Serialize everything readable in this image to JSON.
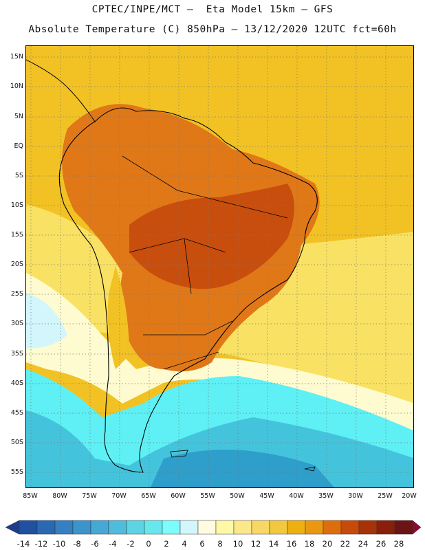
{
  "header": {
    "line1": "CPTEC/INPE/MCT –  Eta Model 15km – GFS",
    "line2": "Absolute Temperature (C) 850hPa – 13/12/2020 12UTC fct=60h"
  },
  "map": {
    "lat_labels": [
      "15N",
      "10N",
      "5N",
      "EQ",
      "5S",
      "10S",
      "15S",
      "20S",
      "25S",
      "30S",
      "35S",
      "40S",
      "45S",
      "50S",
      "55S"
    ],
    "lon_labels": [
      "85W",
      "80W",
      "75W",
      "70W",
      "65W",
      "60W",
      "55W",
      "50W",
      "45W",
      "40W",
      "35W",
      "30W",
      "25W",
      "20W"
    ],
    "grid_style": "dotted",
    "palette": {
      "ocean_warm": "#f2c224",
      "ocean_mild": "#fae66a",
      "land_hot": "#e07818",
      "land_hotter": "#c84e0e",
      "cool": "#fffbd0",
      "cold": "#5ef0f4",
      "colder": "#44c4dc",
      "coldest": "#2a98c8",
      "coastline": "#000000"
    }
  },
  "colorbar": {
    "labels": [
      "-14",
      "-12",
      "-10",
      "-8",
      "-6",
      "-4",
      "-2",
      "0",
      "2",
      "4",
      "6",
      "8",
      "10",
      "12",
      "14",
      "16",
      "18",
      "20",
      "22",
      "24",
      "26",
      "28"
    ],
    "colors": [
      "#1e3c8c",
      "#2050a0",
      "#2a68b4",
      "#3480c0",
      "#3c94cc",
      "#46a8d4",
      "#50bcdc",
      "#5cd4e4",
      "#66e8ee",
      "#7cfcfc",
      "#d2f6fc",
      "#fffbe0",
      "#fff8a6",
      "#fce88a",
      "#f8d864",
      "#f2c83e",
      "#eeb010",
      "#ea9812",
      "#de6e0c",
      "#c84a0a",
      "#a83208",
      "#8a1e0c",
      "#6a1414",
      "#8c0a30"
    ]
  }
}
